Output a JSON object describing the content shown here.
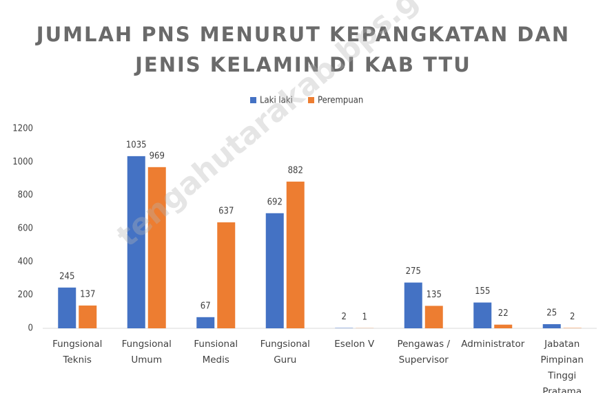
{
  "chart_data": {
    "type": "bar",
    "title": "JUMLAH PNS MENURUT KEPANGKATAN DAN JENIS KELAMIN DI KAB TTU",
    "watermark": "tengahutarakab.bps.go.id",
    "categories": [
      "Fungsional Teknis",
      "Fungsional Umum",
      "Funsional Medis",
      "Fungsional Guru",
      "Eselon V",
      "Pengawas / Supervisor",
      "Administrator",
      "Jabatan Pimpinan Tinggi Pratama"
    ],
    "series": [
      {
        "name": "Laki laki",
        "color": "#4472c4",
        "values": [
          245,
          1035,
          67,
          692,
          2,
          275,
          155,
          25
        ]
      },
      {
        "name": "Perempuan",
        "color": "#ed7d31",
        "values": [
          137,
          969,
          637,
          882,
          1,
          135,
          22,
          2
        ]
      }
    ],
    "ylim": [
      0,
      1200
    ],
    "yticks": [
      0,
      200,
      400,
      600,
      800,
      1000,
      1200
    ],
    "grid": false,
    "legend": "top"
  }
}
